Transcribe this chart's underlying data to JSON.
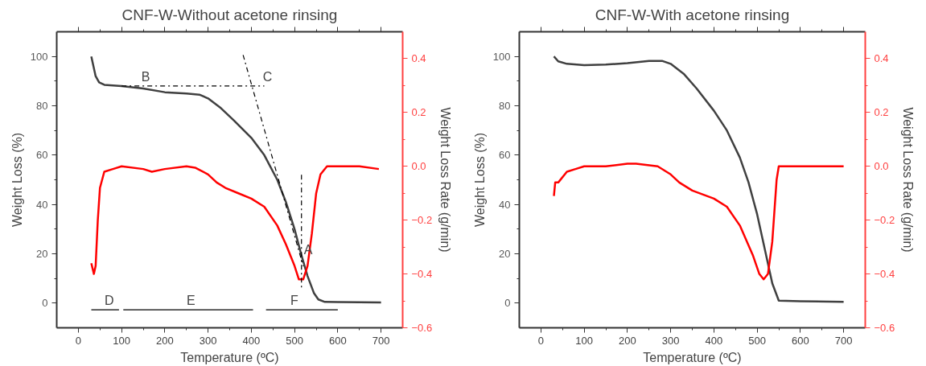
{
  "chart_data": [
    {
      "type": "line",
      "title": "CNF-W-Without acetone rinsing",
      "xlabel": "Temperature (ºC)",
      "ylabel": "Weight Loss (%)",
      "y2label": "Weight Loss Rate (g/min)",
      "xlim": [
        -50,
        750
      ],
      "xticks": [
        0,
        100,
        200,
        300,
        400,
        500,
        600,
        700
      ],
      "ylim": [
        -10,
        110
      ],
      "yticks": [
        0,
        20,
        40,
        60,
        80,
        100
      ],
      "y2lim": [
        -0.6,
        0.5
      ],
      "y2ticks": [
        -0.6,
        -0.4,
        -0.2,
        {
          "value": 0,
          "label": "0.0"
        },
        0.2,
        0.4
      ],
      "grid": false,
      "series": [
        {
          "color": "#404040",
          "x": [
            30,
            35,
            40,
            48,
            60,
            100,
            150,
            200,
            250,
            280,
            300,
            330,
            360,
            400,
            430,
            460,
            480,
            500,
            515,
            530,
            545,
            555,
            570,
            600,
            700
          ],
          "values": [
            100,
            96,
            92,
            89.5,
            88.5,
            88,
            87,
            85.5,
            85,
            84.5,
            83,
            79,
            74,
            67,
            60,
            50,
            41,
            30,
            20,
            11,
            4,
            1.5,
            0.5,
            0.4,
            0.3
          ]
        },
        {
          "color": "#ff0000",
          "axis": "y2",
          "x": [
            30,
            33,
            36,
            40,
            45,
            50,
            60,
            80,
            100,
            150,
            170,
            200,
            250,
            270,
            300,
            320,
            340,
            370,
            400,
            430,
            460,
            480,
            500,
            510,
            520,
            530,
            540,
            550,
            560,
            575,
            600,
            650,
            695
          ],
          "values": [
            -0.36,
            -0.38,
            -0.4,
            -0.37,
            -0.2,
            -0.08,
            -0.02,
            -0.01,
            0.0,
            -0.01,
            -0.02,
            -0.01,
            0.0,
            -0.005,
            -0.03,
            -0.06,
            -0.08,
            -0.1,
            -0.12,
            -0.15,
            -0.22,
            -0.29,
            -0.37,
            -0.42,
            -0.42,
            -0.37,
            -0.25,
            -0.1,
            -0.03,
            0.0,
            0.0,
            0.0,
            -0.01
          ]
        },
        {
          "color": "#000000",
          "line_style": "dashed",
          "x": [
            100,
            430
          ],
          "values": [
            88,
            88
          ]
        },
        {
          "color": "#000000",
          "line_style": "dashed",
          "x": [
            381,
            520
          ],
          "values": [
            100.6,
            15
          ]
        },
        {
          "color": "#000000",
          "line_style": "dashed",
          "x": [
            516,
            516
          ],
          "values": [
            52,
            6
          ]
        },
        {
          "color": "#000000",
          "x": [
            30,
            94
          ],
          "values": [
            -2.7,
            -2.7
          ]
        },
        {
          "color": "#000000",
          "x": [
            104,
            404
          ],
          "values": [
            -2.7,
            -2.7
          ]
        },
        {
          "color": "#000000",
          "x": [
            434,
            600
          ],
          "values": [
            -2.7,
            -2.7
          ]
        }
      ],
      "annotations": [
        {
          "text": "B",
          "x": 140,
          "y": 88
        },
        {
          "text": "C",
          "x": 421,
          "y": 88
        },
        {
          "text": "A",
          "x": 516,
          "y": 18
        },
        {
          "text": "D",
          "x": 55,
          "y": -2.7
        },
        {
          "text": "E",
          "x": 245,
          "y": -2.7
        },
        {
          "text": "F",
          "x": 485,
          "y": -2.7
        }
      ]
    },
    {
      "type": "line",
      "title": "CNF-W-With acetone rinsing",
      "xlabel": "Temperature (ºC)",
      "ylabel": "Weight Loss (%)",
      "y2label": "Weight Loss Rate (g/min)",
      "xlim": [
        -50,
        750
      ],
      "xticks": [
        0,
        100,
        200,
        300,
        400,
        500,
        600,
        700
      ],
      "ylim": [
        -10,
        110
      ],
      "yticks": [
        0,
        20,
        40,
        60,
        80,
        100
      ],
      "y2lim": [
        -0.6,
        0.5
      ],
      "y2ticks": [
        -0.6,
        -0.4,
        -0.2,
        {
          "value": 0,
          "label": "0.0"
        },
        0.2,
        0.4
      ],
      "grid": false,
      "series": [
        {
          "color": "#404040",
          "x": [
            30,
            40,
            60,
            100,
            150,
            200,
            250,
            280,
            300,
            330,
            360,
            400,
            430,
            460,
            480,
            500,
            520,
            535,
            550,
            600,
            700
          ],
          "values": [
            100,
            98,
            97,
            96.5,
            96.7,
            97.3,
            98.2,
            98.2,
            97,
            93,
            87,
            78,
            70,
            59,
            49,
            36,
            20,
            8,
            1,
            0.8,
            0.5
          ]
        },
        {
          "color": "#ff0000",
          "axis": "y2",
          "x": [
            30,
            33,
            40,
            60,
            80,
            100,
            150,
            200,
            220,
            270,
            300,
            320,
            350,
            400,
            430,
            460,
            490,
            505,
            515,
            525,
            535,
            545,
            550,
            600,
            700
          ],
          "values": [
            -0.11,
            -0.06,
            -0.06,
            -0.02,
            -0.01,
            0,
            0,
            0.01,
            0.01,
            0,
            -0.03,
            -0.06,
            -0.09,
            -0.12,
            -0.15,
            -0.22,
            -0.33,
            -0.4,
            -0.42,
            -0.4,
            -0.28,
            -0.05,
            0,
            0,
            0
          ]
        }
      ]
    }
  ]
}
